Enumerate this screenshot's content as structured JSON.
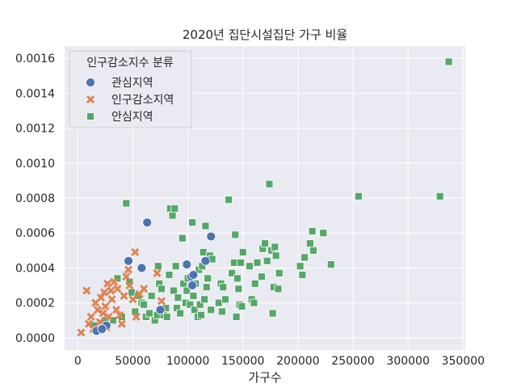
{
  "chart_data": {
    "type": "scatter",
    "title": "2020년 집단시설집단 가구 비율",
    "xlabel": "가구수",
    "ylabel": "",
    "xlim": [
      -12000,
      352000
    ],
    "ylim": [
      -7e-05,
      0.00167
    ],
    "xticks": [
      0,
      50000,
      100000,
      150000,
      200000,
      250000,
      300000,
      350000
    ],
    "xtick_labels": [
      "0",
      "50000",
      "100000",
      "150000",
      "200000",
      "250000",
      "300000",
      "350000"
    ],
    "yticks": [
      0.0,
      0.0002,
      0.0004,
      0.0006,
      0.0008,
      0.001,
      0.0012,
      0.0014,
      0.0016
    ],
    "ytick_labels": [
      "0.0000",
      "0.0002",
      "0.0004",
      "0.0006",
      "0.0008",
      "0.0010",
      "0.0012",
      "0.0014",
      "0.0016"
    ],
    "grid": true,
    "background": "#eaeaf2",
    "legend": {
      "title": "인구감소지수 분류",
      "placement": "top-left"
    },
    "series": [
      {
        "name": "관심지역",
        "marker": "circle",
        "color": "#4c72b0",
        "points": [
          [
            26000,
            7e-05
          ],
          [
            46000,
            0.00044
          ],
          [
            58000,
            0.0004
          ],
          [
            63000,
            0.00066
          ],
          [
            75000,
            0.00016
          ],
          [
            99000,
            0.00042
          ],
          [
            103000,
            0.00035
          ],
          [
            104000,
            0.0003
          ],
          [
            105000,
            0.00036
          ],
          [
            116000,
            0.00044
          ],
          [
            121000,
            0.00058
          ],
          [
            17000,
            4e-05
          ],
          [
            22000,
            5e-05
          ]
        ]
      },
      {
        "name": "인구감소지역",
        "marker": "x",
        "color": "#dd8452",
        "points": [
          [
            3000,
            3e-05
          ],
          [
            8000,
            0.00027
          ],
          [
            10000,
            8e-05
          ],
          [
            12000,
            0.00012
          ],
          [
            14000,
            5e-05
          ],
          [
            16000,
            0.0002
          ],
          [
            18000,
            0.00016
          ],
          [
            20000,
            9e-05
          ],
          [
            21000,
            0.00023
          ],
          [
            23000,
            0.00014
          ],
          [
            25000,
            0.00018
          ],
          [
            27000,
            0.00031
          ],
          [
            28000,
            0.00012
          ],
          [
            30000,
            0.00027
          ],
          [
            31000,
            0.00022
          ],
          [
            33000,
            0.00032
          ],
          [
            35000,
            0.00016
          ],
          [
            36000,
            0.00028
          ],
          [
            38000,
            0.00013
          ],
          [
            40000,
            8e-05
          ],
          [
            42000,
            0.00024
          ],
          [
            44000,
            0.00035
          ],
          [
            46000,
            0.00039
          ],
          [
            47000,
            0.0003
          ],
          [
            50000,
            0.00022
          ],
          [
            52000,
            0.00049
          ],
          [
            53000,
            0.00012
          ],
          [
            56000,
            0.00025
          ],
          [
            60000,
            0.00028
          ],
          [
            72000,
            0.00037
          ],
          [
            76000,
            0.00021
          ],
          [
            24000,
            0.00026
          ],
          [
            26000,
            6e-05
          ]
        ]
      },
      {
        "name": "안심지역",
        "marker": "square",
        "color": "#55a868",
        "points": [
          [
            15000,
            7e-05
          ],
          [
            18000,
            4e-05
          ],
          [
            25000,
            0.0001
          ],
          [
            32000,
            0.0001
          ],
          [
            36000,
            0.00034
          ],
          [
            40000,
            0.00012
          ],
          [
            44000,
            0.00077
          ],
          [
            47000,
            0.00032
          ],
          [
            49000,
            0.00026
          ],
          [
            52000,
            0.00015
          ],
          [
            55000,
            0.00024
          ],
          [
            58000,
            0.0002
          ],
          [
            60000,
            0.00019
          ],
          [
            62000,
            0.00012
          ],
          [
            65000,
            0.00014
          ],
          [
            67000,
            0.00024
          ],
          [
            70000,
            0.0001
          ],
          [
            72000,
            0.00013
          ],
          [
            73000,
            0.00041
          ],
          [
            74000,
            0.00031
          ],
          [
            76000,
            0.00028
          ],
          [
            78000,
            0.00013
          ],
          [
            80000,
            0.00017
          ],
          [
            81000,
            0.00012
          ],
          [
            83000,
            0.00036
          ],
          [
            84000,
            0.00074
          ],
          [
            86000,
            0.0007
          ],
          [
            87000,
            0.00027
          ],
          [
            88000,
            0.00074
          ],
          [
            89000,
            0.00041
          ],
          [
            90000,
            0.00017
          ],
          [
            91000,
            0.00023
          ],
          [
            93000,
            0.00014
          ],
          [
            95000,
            0.00057
          ],
          [
            96000,
            0.00031
          ],
          [
            98000,
            0.0002
          ],
          [
            99000,
            0.00027
          ],
          [
            100000,
            0.00034
          ],
          [
            102000,
            0.00019
          ],
          [
            104000,
            0.00066
          ],
          [
            105000,
            0.00024
          ],
          [
            106000,
            0.00016
          ],
          [
            107000,
            0.00031
          ],
          [
            109000,
            0.00012
          ],
          [
            110000,
            0.00039
          ],
          [
            111000,
            0.00019
          ],
          [
            112000,
            0.00013
          ],
          [
            113000,
            0.00041
          ],
          [
            114000,
            0.00049
          ],
          [
            115000,
            0.00022
          ],
          [
            116000,
            0.00064
          ],
          [
            117000,
            0.00029
          ],
          [
            118000,
            0.00034
          ],
          [
            120000,
            0.00047
          ],
          [
            121000,
            0.00016
          ],
          [
            122000,
            0.00045
          ],
          [
            128000,
            0.0002
          ],
          [
            130000,
            0.00031
          ],
          [
            131000,
            0.00015
          ],
          [
            132000,
            0.00029
          ],
          [
            134000,
            0.00022
          ],
          [
            137000,
            0.00079
          ],
          [
            140000,
            0.00037
          ],
          [
            142000,
            0.00043
          ],
          [
            143000,
            0.00059
          ],
          [
            144000,
            0.00012
          ],
          [
            145000,
            0.00034
          ],
          [
            146000,
            0.00028
          ],
          [
            147000,
            0.00019
          ],
          [
            148000,
            0.00043
          ],
          [
            149000,
            0.00018
          ],
          [
            150000,
            0.00049
          ],
          [
            156000,
            0.00041
          ],
          [
            158000,
            0.00022
          ],
          [
            160000,
            0.0002
          ],
          [
            161000,
            0.00031
          ],
          [
            163000,
            0.00043
          ],
          [
            167000,
            0.00035
          ],
          [
            168000,
            0.00051
          ],
          [
            170000,
            0.00054
          ],
          [
            172000,
            0.00044
          ],
          [
            174000,
            0.00088
          ],
          [
            176000,
            0.0005
          ],
          [
            177000,
            0.00014
          ],
          [
            178000,
            0.00029
          ],
          [
            179000,
            0.00052
          ],
          [
            180000,
            0.00047
          ],
          [
            182000,
            0.00028
          ],
          [
            183000,
            0.00037
          ],
          [
            202000,
            0.00041
          ],
          [
            204000,
            0.00036
          ],
          [
            206000,
            0.00046
          ],
          [
            211000,
            0.00054
          ],
          [
            213000,
            0.00061
          ],
          [
            214000,
            0.0005
          ],
          [
            223000,
            0.0006
          ],
          [
            230000,
            0.00042
          ],
          [
            255000,
            0.00081
          ],
          [
            329000,
            0.00081
          ],
          [
            337000,
            0.00158
          ]
        ]
      }
    ]
  }
}
